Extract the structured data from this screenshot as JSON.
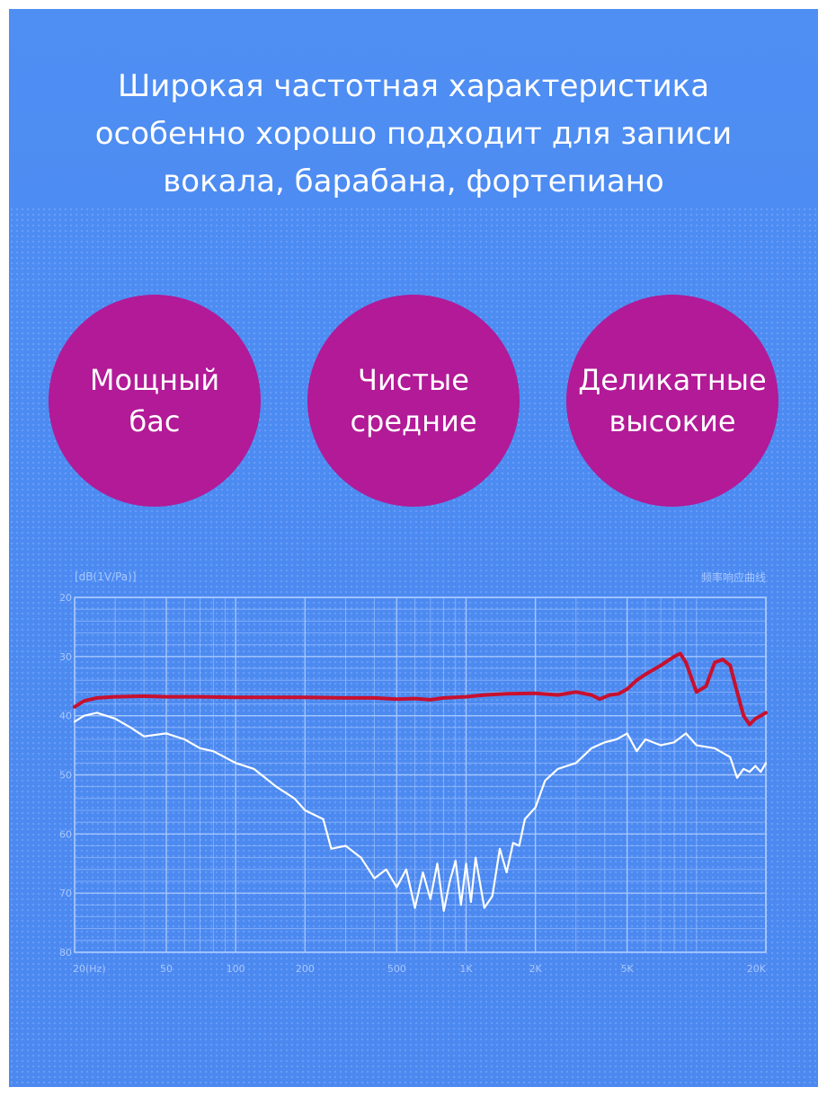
{
  "headline": {
    "lines": [
      "Широкая частотная характеристика",
      "особенно хорошо подходит для записи",
      "вокала, барабана, фортепиано"
    ]
  },
  "features": [
    {
      "line1": "Мощный",
      "line2": "бас"
    },
    {
      "line1": "Чистые",
      "line2": "средние"
    },
    {
      "line1": "Деликатные",
      "line2": "высокие"
    }
  ],
  "colors": {
    "background": "#4d8cf2",
    "circle": "#b21a97",
    "text": "#ffffff",
    "grid": "#a9c8ff",
    "red_curve": "#c8102e",
    "white_curve": "#ffffff"
  },
  "chart_data": {
    "type": "line",
    "title": "频率响应曲线",
    "ylabel": "[dB(1V/Pa)]",
    "xlabel": "",
    "x_scale": "log",
    "xlim": [
      20,
      20000
    ],
    "ylim": [
      -80,
      -20
    ],
    "y_ticks": [
      -20,
      -30,
      -40,
      -50,
      -60,
      -70,
      -80
    ],
    "y_tick_labels": [
      "20",
      "30",
      "40",
      "50",
      "60",
      "70",
      "80"
    ],
    "x_ticks": [
      20,
      50,
      100,
      200,
      500,
      1000,
      2000,
      5000,
      20000
    ],
    "x_tick_labels": [
      "20(Hz)",
      "50",
      "100",
      "200",
      "500",
      "1K",
      "2K",
      "5K",
      "20K"
    ],
    "grid": true,
    "series": [
      {
        "color": "#c8102e",
        "x": [
          20,
          22,
          25,
          30,
          40,
          50,
          70,
          100,
          150,
          200,
          300,
          400,
          500,
          600,
          700,
          800,
          1000,
          1200,
          1500,
          2000,
          2500,
          3000,
          3500,
          3800,
          4200,
          4600,
          5000,
          5500,
          6000,
          7000,
          8000,
          8500,
          9000,
          10000,
          11000,
          12000,
          13000,
          14000,
          15000,
          16000,
          17000,
          18000,
          19000,
          20000
        ],
        "values": [
          -38.5,
          -37.5,
          -37.0,
          -36.8,
          -36.7,
          -36.8,
          -36.8,
          -36.9,
          -36.9,
          -36.9,
          -37.0,
          -37.0,
          -37.2,
          -37.1,
          -37.3,
          -37.0,
          -36.8,
          -36.5,
          -36.3,
          -36.2,
          -36.5,
          -36.0,
          -36.5,
          -37.2,
          -36.5,
          -36.3,
          -35.5,
          -34.0,
          -33.0,
          -31.5,
          -30.0,
          -29.5,
          -31.0,
          -36.0,
          -35.0,
          -31.0,
          -30.5,
          -31.5,
          -36.0,
          -40.0,
          -41.5,
          -40.5,
          -40.0,
          -39.5
        ]
      },
      {
        "color": "#ffffff",
        "x": [
          20,
          22,
          25,
          30,
          35,
          40,
          50,
          60,
          70,
          80,
          100,
          120,
          150,
          180,
          200,
          240,
          260,
          300,
          350,
          400,
          450,
          500,
          550,
          600,
          650,
          700,
          750,
          800,
          850,
          900,
          950,
          1000,
          1050,
          1100,
          1200,
          1300,
          1400,
          1500,
          1600,
          1700,
          1800,
          2000,
          2200,
          2500,
          3000,
          3500,
          4000,
          4500,
          5000,
          5500,
          6000,
          7000,
          8000,
          9000,
          10000,
          12000,
          14000,
          15000,
          16000,
          17000,
          18000,
          19000,
          20000
        ],
        "values": [
          -41.0,
          -40.0,
          -39.5,
          -40.5,
          -42.0,
          -43.5,
          -43.0,
          -44.0,
          -45.5,
          -46.0,
          -48.0,
          -49.0,
          -52.0,
          -54.0,
          -56.0,
          -57.5,
          -62.5,
          -62.0,
          -64.0,
          -67.5,
          -66.0,
          -69.0,
          -66.0,
          -72.5,
          -66.5,
          -71.0,
          -65.0,
          -73.0,
          -68.0,
          -64.5,
          -72.0,
          -65.0,
          -71.5,
          -64.0,
          -72.5,
          -70.5,
          -62.5,
          -66.5,
          -61.5,
          -62.0,
          -57.5,
          -55.5,
          -51.0,
          -49.0,
          -48.0,
          -45.5,
          -44.5,
          -44.0,
          -43.0,
          -46.0,
          -44.0,
          -45.0,
          -44.5,
          -43.0,
          -45.0,
          -45.5,
          -47.0,
          -50.5,
          -49.0,
          -49.5,
          -48.5,
          -49.5,
          -48.0
        ]
      }
    ]
  }
}
